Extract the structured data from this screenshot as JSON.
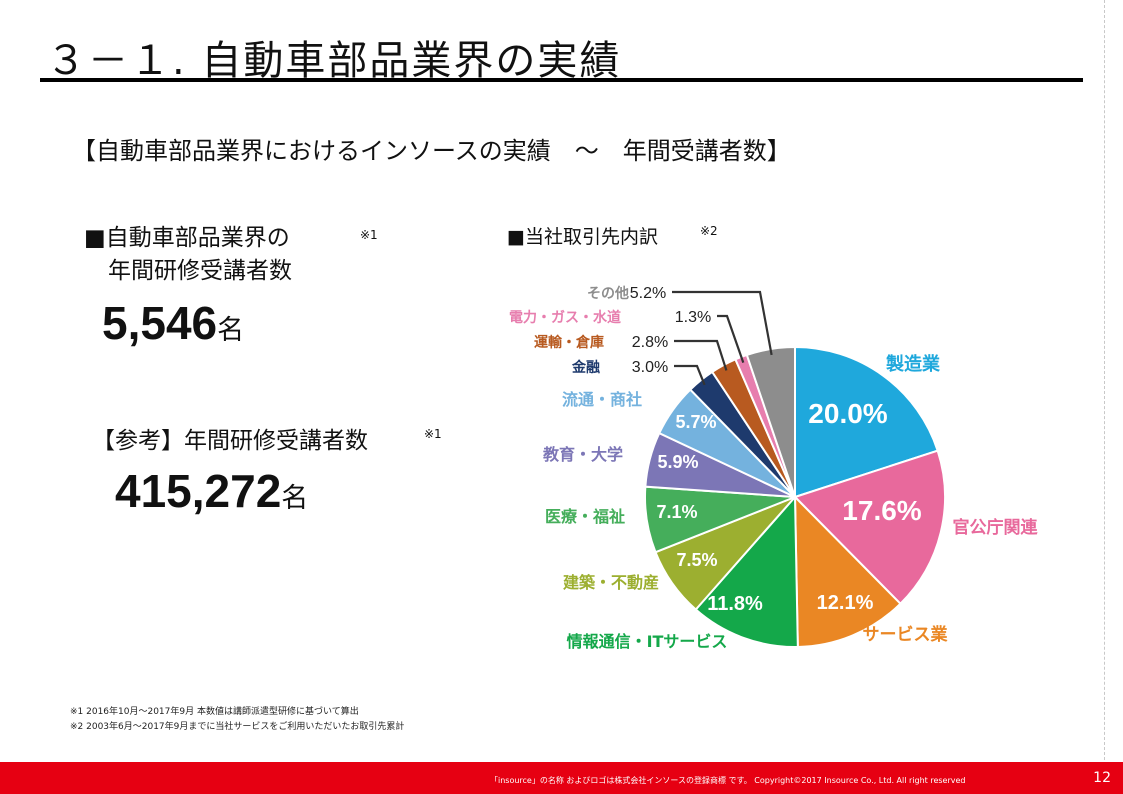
{
  "title": "３－１.  自動車部品業界の実績",
  "subtitle": "【自動車部品業界におけるインソースの実績　～　年間受講者数】",
  "section1": {
    "heading_line1": "■自動車部品業界の",
    "heading_line2": "年間研修受講者数",
    "note_mark": "※1",
    "value": "5,546",
    "unit": "名"
  },
  "section2": {
    "heading": "【参考】年間研修受講者数",
    "note_mark": "※1",
    "value": "415,272",
    "unit": "名"
  },
  "chart_header": {
    "label": "■当社取引先内訳",
    "note_mark": "※2"
  },
  "chart_data": {
    "type": "pie",
    "title": "■当社取引先内訳",
    "slices": [
      {
        "label": "製造業",
        "value": 20.0,
        "display": "20.0%",
        "color": "#1fa8dc"
      },
      {
        "label": "官公庁関連",
        "value": 17.6,
        "display": "17.6%",
        "color": "#e8699c"
      },
      {
        "label": "サービス業",
        "value": 12.1,
        "display": "12.1%",
        "color": "#ea8724"
      },
      {
        "label": "情報通信・ITサービス",
        "value": 11.8,
        "display": "11.8%",
        "color": "#14a84a"
      },
      {
        "label": "建築・不動産",
        "value": 7.5,
        "display": "7.5%",
        "color": "#9caf30"
      },
      {
        "label": "医療・福祉",
        "value": 7.1,
        "display": "7.1%",
        "color": "#45ae5b"
      },
      {
        "label": "教育・大学",
        "value": 5.9,
        "display": "5.9%",
        "color": "#7c76b6"
      },
      {
        "label": "流通・商社",
        "value": 5.7,
        "display": "5.7%",
        "color": "#74b2de"
      },
      {
        "label": "金融",
        "value": 3.0,
        "display": "3.0%",
        "color": "#1e3a6d"
      },
      {
        "label": "運輸・倉庫",
        "value": 2.8,
        "display": "2.8%",
        "color": "#b85a20"
      },
      {
        "label": "電力・ガス・水道",
        "value": 1.3,
        "display": "1.3%",
        "color": "#e77eae"
      },
      {
        "label": "その他",
        "value": 5.2,
        "display": "5.2%",
        "color": "#8d8d8d"
      }
    ]
  },
  "footnotes": [
    "※1  2016年10月～2017年9月  本数値は講師派遣型研修に基づいて算出",
    "※2   2003年6月～2017年9月までに当社サービスをご利用いただいたお取引先累計"
  ],
  "footer": {
    "text": "「insource」の名称 およびロゴは株式会社インソースの登録商標 です。  Copyright©2017 Insource Co., Ltd. All right reserved",
    "page_number": "12",
    "color": "#e60012"
  }
}
